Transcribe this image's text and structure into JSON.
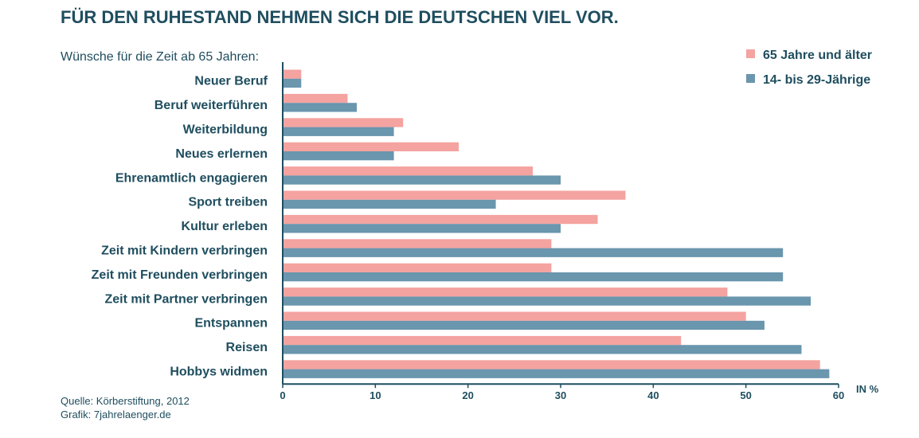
{
  "chart_data": {
    "type": "bar",
    "orientation": "horizontal",
    "title": "FÜR DEN RUHESTAND NEHMEN SICH DIE DEUTSCHEN VIEL VOR.",
    "subtitle": "Wünsche für die Zeit ab 65 Jahren:",
    "xlabel": "IN %",
    "xlim": [
      0,
      60
    ],
    "xticks": [
      0,
      10,
      20,
      30,
      40,
      50,
      60
    ],
    "legend_position": "top-right",
    "categories": [
      "Neuer Beruf",
      "Beruf weiterführen",
      "Weiterbildung",
      "Neues erlernen",
      "Ehrenamtlich engagieren",
      "Sport treiben",
      "Kultur erleben",
      "Zeit mit Kindern verbringen",
      "Zeit mit Freunden verbringen",
      "Zeit mit Partner verbringen",
      "Entspannen",
      "Reisen",
      "Hobbys widmen"
    ],
    "series": [
      {
        "name": "65 Jahre und älter",
        "color": "#f4a3a0",
        "values": [
          2,
          7,
          13,
          19,
          27,
          37,
          34,
          29,
          29,
          48,
          50,
          43,
          58
        ]
      },
      {
        "name": "14- bis 29-Jährige",
        "color": "#6a96ae",
        "values": [
          2,
          8,
          12,
          12,
          30,
          23,
          30,
          54,
          54,
          57,
          52,
          56,
          59
        ]
      }
    ]
  },
  "footer": {
    "source": "Quelle: Körberstiftung, 2012",
    "credit": "Grafik: 7jahrelaenger.de"
  },
  "colors": {
    "text": "#1f4e5f",
    "axis": "#1f4e5f"
  }
}
